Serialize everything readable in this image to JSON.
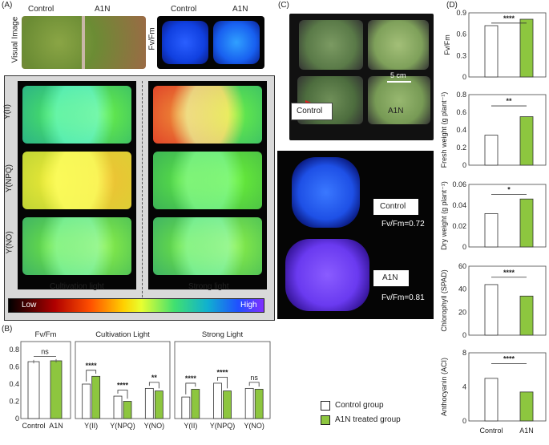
{
  "panel_a": {
    "letter": "(A)",
    "col_control": "Control",
    "col_a1n": "A1N",
    "col_control_2": "Control",
    "col_a1n_2": "A1N",
    "row_visual": "Visual Image",
    "row_fvfm": "Fv/Fm",
    "row_yii": "Y(II)",
    "row_ynpq": "Y(NPQ)",
    "row_yno": "Y(NO)",
    "cultivation_light": "Cultivation light",
    "strong_light": "Strong light",
    "scale_low": "Low",
    "scale_high": "High"
  },
  "panel_c": {
    "letter": "(C)",
    "scale_bar": "5 cm",
    "label_control": "Control",
    "label_a1n": "A1N",
    "box_control": "Control",
    "box_a1n": "A1N",
    "fvfm_control": "Fv/Fm=0.72",
    "fvfm_a1n": "Fv/Fm=0.81"
  },
  "legend": {
    "control": "Control group",
    "treated": "A1N treated group",
    "control_color": "#ffffff",
    "treated_color": "#8dc63f"
  },
  "chart_data": [
    {
      "panel": "(B)",
      "type": "bar",
      "title": "Fv/Fm",
      "categories": [
        "Control",
        "A1N"
      ],
      "values": [
        0.66,
        0.67
      ],
      "errors": [
        0.02,
        0.02
      ],
      "ylim": [
        0,
        0.8
      ],
      "yticks": [
        "0",
        "0.2",
        "0.4",
        "0.6",
        "0.8"
      ],
      "significance": [
        "ns"
      ]
    },
    {
      "panel": "(B)",
      "type": "bar",
      "title": "Cultivation Light",
      "categories": [
        "Y(II)",
        "Y(NPQ)",
        "Y(NO)"
      ],
      "series": [
        {
          "name": "Control group",
          "values": [
            0.4,
            0.26,
            0.35
          ]
        },
        {
          "name": "A1N treated group",
          "values": [
            0.49,
            0.2,
            0.32
          ]
        }
      ],
      "ylim": [
        0,
        0.8
      ],
      "significance": [
        "****",
        "****",
        "**"
      ]
    },
    {
      "panel": "(B)",
      "type": "bar",
      "title": "Strong Light",
      "categories": [
        "Y(II)",
        "Y(NPQ)",
        "Y(NO)"
      ],
      "series": [
        {
          "name": "Control group",
          "values": [
            0.25,
            0.41,
            0.35
          ]
        },
        {
          "name": "A1N treated group",
          "values": [
            0.34,
            0.32,
            0.34
          ]
        }
      ],
      "ylim": [
        0,
        0.8
      ],
      "significance": [
        "****",
        "****",
        "ns"
      ]
    },
    {
      "panel": "(D)",
      "type": "bar",
      "ylabel": "Fv/Fm",
      "categories": [
        "Control",
        "A1N"
      ],
      "values": [
        0.72,
        0.81
      ],
      "ylim": [
        0,
        0.9
      ],
      "yticks": [
        "0",
        "0.3",
        "0.6",
        "0.9"
      ],
      "significance": "****"
    },
    {
      "panel": "(D)",
      "type": "bar",
      "ylabel": "Fresh weight (g plant⁻¹)",
      "categories": [
        "Control",
        "A1N"
      ],
      "values": [
        0.34,
        0.55
      ],
      "ylim": [
        0,
        0.8
      ],
      "yticks": [
        "0",
        "0.2",
        "0.4",
        "0.6",
        "0.8"
      ],
      "significance": "**"
    },
    {
      "panel": "(D)",
      "type": "bar",
      "ylabel": "Dry weight (g plant⁻¹)",
      "categories": [
        "Control",
        "A1N"
      ],
      "values": [
        0.032,
        0.046
      ],
      "ylim": [
        0,
        0.06
      ],
      "yticks": [
        "0",
        "0.02",
        "0.04",
        "0.06"
      ],
      "significance": "*"
    },
    {
      "panel": "(D)",
      "type": "bar",
      "ylabel": "Chlorophyll (SPAD)",
      "categories": [
        "Control",
        "A1N"
      ],
      "values": [
        44,
        34
      ],
      "ylim": [
        0,
        60
      ],
      "yticks": [
        "0",
        "20",
        "40",
        "60"
      ],
      "significance": "****"
    },
    {
      "panel": "(D)",
      "type": "bar",
      "ylabel": "Anthocyanin (ACI)",
      "categories": [
        "Control",
        "A1N"
      ],
      "values": [
        5.0,
        3.4
      ],
      "ylim": [
        0,
        8
      ],
      "yticks": [
        "0",
        "4",
        "8"
      ],
      "significance": "****"
    }
  ],
  "panel_b_letter": "(B)",
  "panel_d_letter": "(D)"
}
